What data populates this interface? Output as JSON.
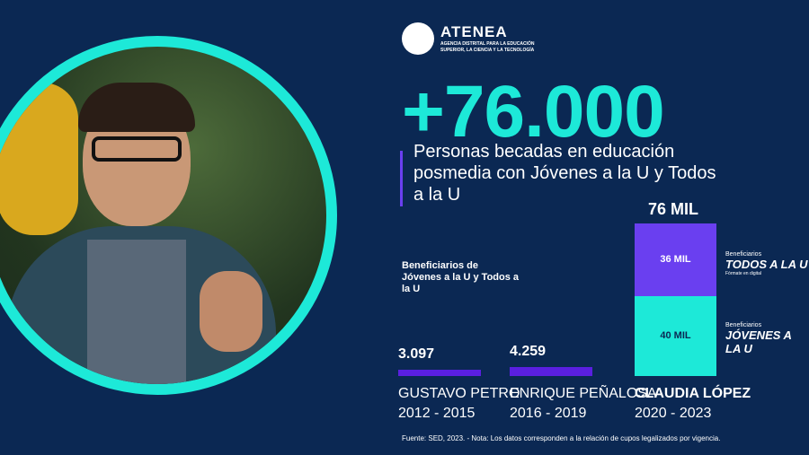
{
  "logo": {
    "name": "ATENEA",
    "sub_line1": "AGENCIA DISTRITAL PARA LA EDUCACIÓN",
    "sub_line2": "SUPERIOR, LA CIENCIA Y LA TECNOLOGÍA"
  },
  "headline": "+76.000",
  "subtitle": "Personas becadas en educación posmedia con Jóvenes a la U y Todos a la U",
  "colors": {
    "background": "#0b2853",
    "cyan": "#1de9d8",
    "purple": "#6a3ff0",
    "bar_purple": "#5a1fe0"
  },
  "chart_data": {
    "type": "bar",
    "title": "Beneficiarios de Jóvenes a la U y Todos a la U",
    "categories": [
      {
        "name": "GUSTAVO PETRO",
        "period": "2012 - 2015",
        "label": "3.097"
      },
      {
        "name": "ENRIQUE PEÑALOSA",
        "period": "2016 - 2019",
        "label": "4.259"
      },
      {
        "name": "CLAUDIA LÓPEZ",
        "period": "2020 - 2023",
        "label": "76 MIL"
      }
    ],
    "values": [
      3097,
      4259,
      76000
    ],
    "stack": [
      {
        "name": "JÓVENES A LA U",
        "value": 40000,
        "label": "40 MIL",
        "color": "#1de9d8"
      },
      {
        "name": "TODOS A LA U",
        "value": 36000,
        "label": "36 MIL",
        "color": "#6a3ff0"
      }
    ]
  },
  "brands": {
    "todos_prefix": "Beneficiarios",
    "todos_name": "TODOS A LA U",
    "todos_tag": "Fórmate en digital",
    "jovenes_prefix": "Beneficiarios",
    "jovenes_name": "JÓVENES A LA U"
  },
  "footer": "Fuente: SED, 2023.  -   Nota:  Los datos corresponden a la relación de cupos legalizados por vigencia."
}
